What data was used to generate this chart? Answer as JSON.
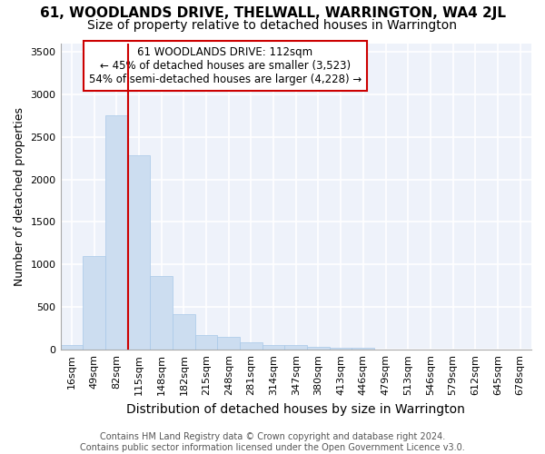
{
  "title_line1": "61, WOODLANDS DRIVE, THELWALL, WARRINGTON, WA4 2JL",
  "title_line2": "Size of property relative to detached houses in Warrington",
  "xlabel": "Distribution of detached houses by size in Warrington",
  "ylabel": "Number of detached properties",
  "footer_line1": "Contains HM Land Registry data © Crown copyright and database right 2024.",
  "footer_line2": "Contains public sector information licensed under the Open Government Licence v3.0.",
  "annotation_line1": "61 WOODLANDS DRIVE: 112sqm",
  "annotation_line2": "← 45% of detached houses are smaller (3,523)",
  "annotation_line3": "54% of semi-detached houses are larger (4,228) →",
  "categories": [
    "16sqm",
    "49sqm",
    "82sqm",
    "115sqm",
    "148sqm",
    "182sqm",
    "215sqm",
    "248sqm",
    "281sqm",
    "314sqm",
    "347sqm",
    "380sqm",
    "413sqm",
    "446sqm",
    "479sqm",
    "513sqm",
    "546sqm",
    "579sqm",
    "612sqm",
    "645sqm",
    "678sqm"
  ],
  "values": [
    50,
    1100,
    2750,
    2280,
    870,
    420,
    170,
    155,
    90,
    60,
    50,
    35,
    25,
    20,
    5,
    5,
    2,
    2,
    2,
    2,
    2
  ],
  "bar_color": "#ccddf0",
  "bar_edge_color": "#a8c8e8",
  "vline_x": 3,
  "vline_color": "#cc0000",
  "annotation_box_color": "#cc0000",
  "bg_color": "#ffffff",
  "plot_bg_color": "#eef2fa",
  "grid_color": "#ffffff",
  "ylim": [
    0,
    3600
  ],
  "yticks": [
    0,
    500,
    1000,
    1500,
    2000,
    2500,
    3000,
    3500
  ],
  "title1_fontsize": 11,
  "title2_fontsize": 10,
  "ylabel_fontsize": 9,
  "xlabel_fontsize": 10,
  "tick_fontsize": 8,
  "footer_fontsize": 7
}
